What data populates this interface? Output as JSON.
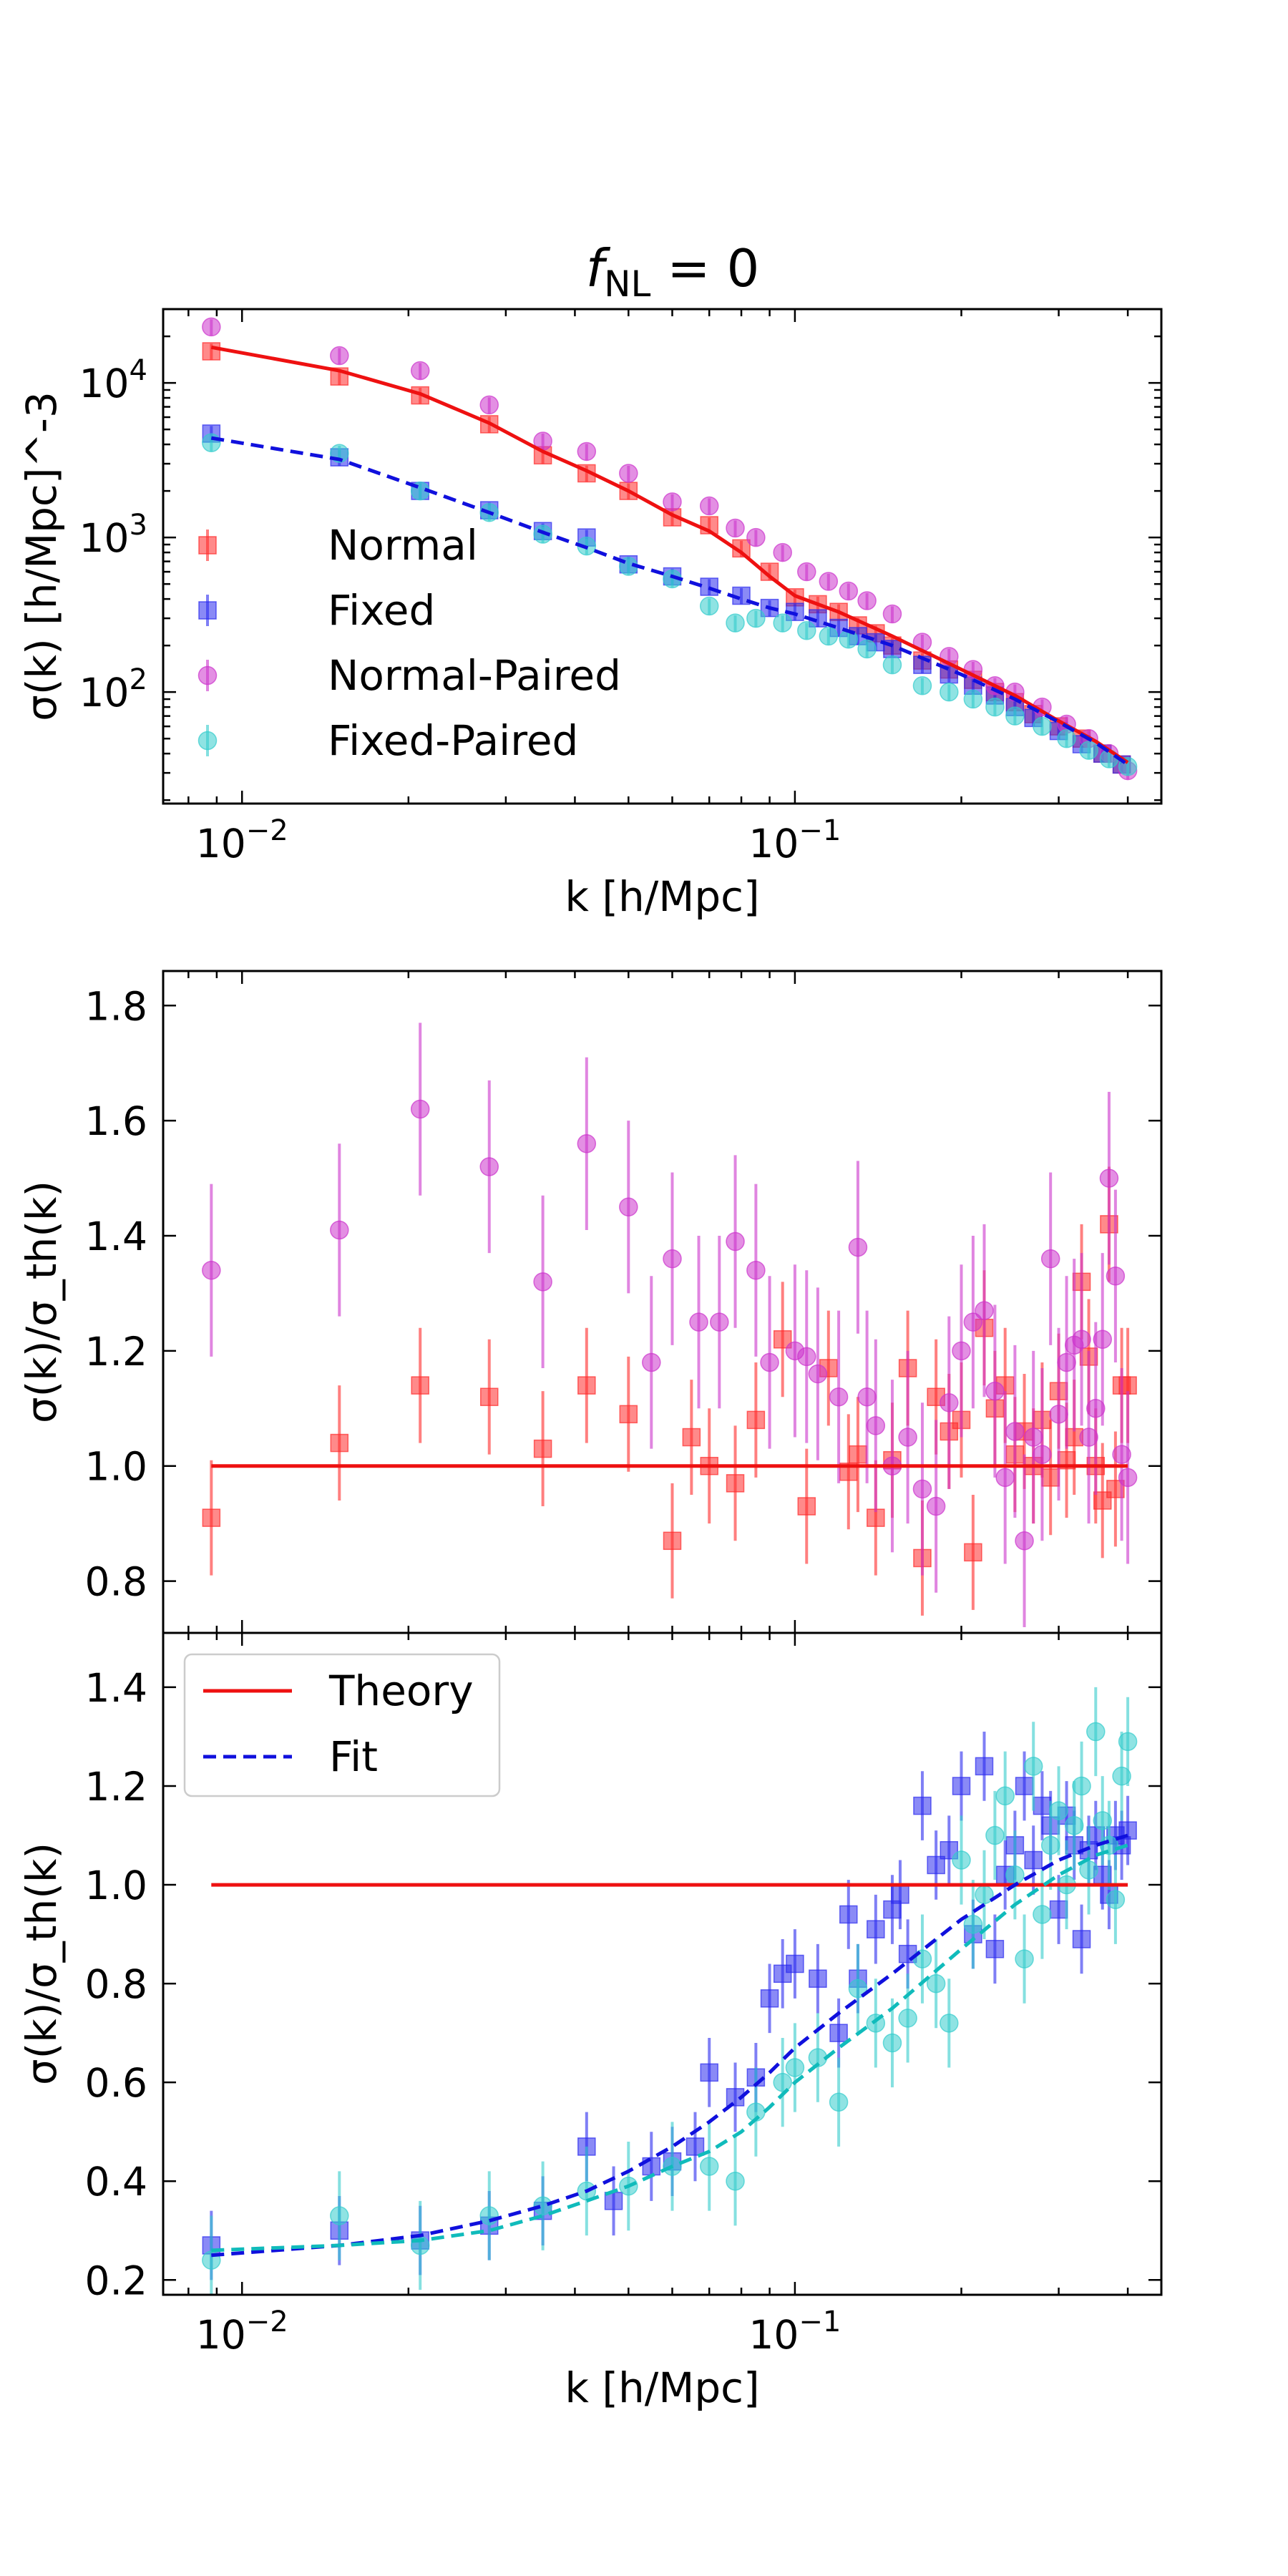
{
  "figure": {
    "title": "f_NL = 0",
    "title_main": "f",
    "title_sub": "NL",
    "title_rest": " = 0"
  },
  "chart_data": [
    {
      "type": "scatter",
      "id": "top",
      "xscale": "log",
      "yscale": "log",
      "xlim": [
        0.0072,
        0.46
      ],
      "ylim": [
        19,
        30000
      ],
      "ylabel": "σ(k)  [h/Mpc]^-3",
      "xlabel": "k [h/Mpc]",
      "xticks": [
        "10^-2",
        "10^-1"
      ],
      "yticks": [
        "10^2",
        "10^3",
        "10^4"
      ],
      "legend": {
        "placement": "lower-left",
        "entries": [
          "Normal",
          "Fixed",
          "Normal-Paired",
          "Fixed-Paired"
        ]
      },
      "lines": [
        {
          "name": "Normal theory",
          "style": "solid",
          "color": "#ee1111",
          "x": [
            0.0088,
            0.015,
            0.021,
            0.028,
            0.035,
            0.042,
            0.05,
            0.06,
            0.07,
            0.08,
            0.09,
            0.1,
            0.12,
            0.15,
            0.2,
            0.25,
            0.3,
            0.35,
            0.4
          ],
          "y": [
            17000,
            12000,
            8500,
            5500,
            3600,
            2700,
            2000,
            1400,
            1100,
            800,
            560,
            420,
            330,
            230,
            140,
            95,
            65,
            48,
            35
          ]
        },
        {
          "name": "Fixed fit",
          "style": "dashed",
          "color": "#1010dd",
          "x": [
            0.0088,
            0.015,
            0.021,
            0.028,
            0.035,
            0.042,
            0.05,
            0.06,
            0.07,
            0.08,
            0.09,
            0.1,
            0.12,
            0.15,
            0.2,
            0.25,
            0.3,
            0.35,
            0.4
          ],
          "y": [
            4400,
            3200,
            2100,
            1450,
            1080,
            860,
            680,
            560,
            470,
            400,
            350,
            320,
            260,
            200,
            130,
            90,
            64,
            47,
            34
          ]
        }
      ],
      "series": [
        {
          "name": "Normal",
          "marker": "square",
          "color": "#ff2a2a",
          "x": [
            0.0088,
            0.015,
            0.021,
            0.028,
            0.035,
            0.042,
            0.05,
            0.06,
            0.07,
            0.08,
            0.09,
            0.1,
            0.11,
            0.12,
            0.13,
            0.14,
            0.15,
            0.17,
            0.19,
            0.21,
            0.23,
            0.25,
            0.27,
            0.3,
            0.33,
            0.36,
            0.39
          ],
          "y": [
            16000,
            11000,
            8300,
            5400,
            3400,
            2600,
            2000,
            1350,
            1200,
            850,
            600,
            410,
            370,
            330,
            270,
            240,
            200,
            160,
            140,
            120,
            100,
            86,
            72,
            60,
            50,
            40,
            34
          ]
        },
        {
          "name": "Fixed",
          "marker": "square",
          "color": "#2a2aee",
          "x": [
            0.0088,
            0.015,
            0.021,
            0.028,
            0.035,
            0.042,
            0.05,
            0.06,
            0.07,
            0.08,
            0.09,
            0.1,
            0.11,
            0.12,
            0.13,
            0.14,
            0.15,
            0.17,
            0.19,
            0.21,
            0.23,
            0.25,
            0.27,
            0.3,
            0.33,
            0.36,
            0.39
          ],
          "y": [
            4700,
            3300,
            2000,
            1500,
            1100,
            1000,
            670,
            560,
            480,
            420,
            350,
            330,
            300,
            260,
            230,
            210,
            190,
            150,
            130,
            110,
            95,
            80,
            68,
            56,
            46,
            40,
            34
          ]
        },
        {
          "name": "Normal-Paired",
          "marker": "circle",
          "color": "#cc33cc",
          "x": [
            0.0088,
            0.015,
            0.021,
            0.028,
            0.035,
            0.042,
            0.05,
            0.06,
            0.07,
            0.078,
            0.085,
            0.095,
            0.105,
            0.115,
            0.125,
            0.135,
            0.15,
            0.17,
            0.19,
            0.21,
            0.23,
            0.25,
            0.28,
            0.31,
            0.34,
            0.37,
            0.4
          ],
          "y": [
            23000,
            15000,
            12000,
            7200,
            4200,
            3600,
            2600,
            1700,
            1600,
            1150,
            1000,
            800,
            600,
            520,
            450,
            390,
            320,
            210,
            170,
            140,
            110,
            100,
            80,
            62,
            50,
            40,
            31
          ]
        },
        {
          "name": "Fixed-Paired",
          "marker": "circle",
          "color": "#33cccc",
          "x": [
            0.0088,
            0.015,
            0.021,
            0.028,
            0.035,
            0.042,
            0.05,
            0.06,
            0.07,
            0.078,
            0.085,
            0.095,
            0.105,
            0.115,
            0.125,
            0.135,
            0.15,
            0.17,
            0.19,
            0.21,
            0.23,
            0.25,
            0.28,
            0.31,
            0.34,
            0.37,
            0.4
          ],
          "y": [
            4100,
            3500,
            2000,
            1450,
            1050,
            880,
            650,
            540,
            360,
            280,
            300,
            280,
            250,
            230,
            220,
            190,
            150,
            110,
            100,
            90,
            80,
            70,
            60,
            50,
            42,
            37,
            33
          ]
        }
      ]
    },
    {
      "type": "scatter",
      "id": "middle",
      "xscale": "log",
      "yscale": "linear",
      "xlim": [
        0.0072,
        0.46
      ],
      "ylim": [
        0.71,
        1.86
      ],
      "ylabel": "σ(k)/σ_th(k)",
      "yticks": [
        "0.8",
        "1.0",
        "1.2",
        "1.4",
        "1.6",
        "1.8"
      ],
      "lines": [
        {
          "name": "Theory",
          "style": "solid",
          "color": "#ee1111",
          "x": [
            0.0088,
            0.4
          ],
          "y": [
            1.0,
            1.0
          ]
        }
      ],
      "series": [
        {
          "name": "Normal",
          "marker": "square",
          "color": "#ff2a2a",
          "err": 0.1,
          "x": [
            0.0088,
            0.015,
            0.021,
            0.028,
            0.035,
            0.042,
            0.05,
            0.06,
            0.065,
            0.07,
            0.078,
            0.085,
            0.095,
            0.105,
            0.115,
            0.125,
            0.13,
            0.14,
            0.15,
            0.16,
            0.17,
            0.18,
            0.19,
            0.2,
            0.21,
            0.22,
            0.23,
            0.24,
            0.25,
            0.26,
            0.27,
            0.28,
            0.29,
            0.3,
            0.31,
            0.32,
            0.33,
            0.34,
            0.35,
            0.36,
            0.37,
            0.38,
            0.39,
            0.4
          ],
          "y": [
            0.91,
            1.04,
            1.14,
            1.12,
            1.03,
            1.14,
            1.09,
            0.87,
            1.05,
            1.0,
            0.97,
            1.08,
            1.22,
            0.93,
            1.17,
            0.99,
            1.02,
            0.91,
            1.01,
            1.17,
            0.84,
            1.12,
            1.06,
            1.08,
            0.85,
            1.24,
            1.1,
            1.14,
            1.02,
            1.06,
            1.0,
            1.08,
            0.98,
            1.13,
            1.01,
            1.05,
            1.32,
            1.19,
            1.0,
            0.94,
            1.42,
            0.96,
            1.14,
            1.14
          ]
        },
        {
          "name": "Normal-Paired",
          "marker": "circle",
          "color": "#cc33cc",
          "err": 0.15,
          "x": [
            0.0088,
            0.015,
            0.021,
            0.028,
            0.035,
            0.042,
            0.05,
            0.055,
            0.06,
            0.067,
            0.073,
            0.078,
            0.085,
            0.09,
            0.1,
            0.105,
            0.11,
            0.12,
            0.13,
            0.135,
            0.14,
            0.15,
            0.16,
            0.17,
            0.18,
            0.19,
            0.2,
            0.21,
            0.22,
            0.23,
            0.24,
            0.25,
            0.26,
            0.27,
            0.28,
            0.29,
            0.3,
            0.31,
            0.32,
            0.33,
            0.34,
            0.35,
            0.36,
            0.37,
            0.38,
            0.39,
            0.4
          ],
          "y": [
            1.34,
            1.41,
            1.62,
            1.52,
            1.32,
            1.56,
            1.45,
            1.18,
            1.36,
            1.25,
            1.25,
            1.39,
            1.34,
            1.18,
            1.2,
            1.19,
            1.16,
            1.12,
            1.38,
            1.12,
            1.07,
            1.0,
            1.05,
            0.96,
            0.93,
            1.11,
            1.2,
            1.25,
            1.27,
            1.13,
            0.98,
            1.06,
            0.87,
            1.05,
            1.02,
            1.36,
            1.09,
            1.18,
            1.21,
            1.22,
            1.05,
            1.1,
            1.22,
            1.5,
            1.33,
            1.02,
            0.98
          ]
        }
      ]
    },
    {
      "type": "scatter",
      "id": "bottom",
      "xscale": "log",
      "yscale": "linear",
      "xlim": [
        0.0072,
        0.46
      ],
      "ylim": [
        0.17,
        1.51
      ],
      "ylabel": "σ(k)/σ_th(k)",
      "xlabel": "k [h/Mpc]",
      "xticks": [
        "10^-2",
        "10^-1"
      ],
      "yticks": [
        "0.2",
        "0.4",
        "0.6",
        "0.8",
        "1.0",
        "1.2",
        "1.4"
      ],
      "legend": {
        "placement": "top-left",
        "entries": [
          "Theory",
          "Fit"
        ]
      },
      "lines": [
        {
          "name": "Theory",
          "style": "solid",
          "color": "#ee1111",
          "x": [
            0.0088,
            0.4
          ],
          "y": [
            1.0,
            1.0
          ]
        },
        {
          "name": "Fit",
          "style": "dashed",
          "color": "#1010dd",
          "x": [
            0.0088,
            0.015,
            0.021,
            0.028,
            0.035,
            0.042,
            0.05,
            0.06,
            0.07,
            0.08,
            0.09,
            0.1,
            0.12,
            0.15,
            0.2,
            0.25,
            0.3,
            0.35,
            0.4
          ],
          "y": [
            0.25,
            0.27,
            0.29,
            0.32,
            0.35,
            0.38,
            0.42,
            0.47,
            0.52,
            0.57,
            0.62,
            0.67,
            0.74,
            0.82,
            0.93,
            1.0,
            1.05,
            1.08,
            1.1
          ]
        },
        {
          "name": "Fit paired",
          "style": "dashed",
          "color": "#10bbbb",
          "x": [
            0.0088,
            0.015,
            0.021,
            0.028,
            0.035,
            0.042,
            0.05,
            0.06,
            0.07,
            0.08,
            0.09,
            0.1,
            0.12,
            0.15,
            0.2,
            0.25,
            0.3,
            0.35,
            0.4
          ],
          "y": [
            0.26,
            0.27,
            0.28,
            0.3,
            0.33,
            0.36,
            0.39,
            0.43,
            0.46,
            0.5,
            0.55,
            0.6,
            0.67,
            0.75,
            0.87,
            0.96,
            1.02,
            1.06,
            1.08
          ]
        }
      ],
      "series": [
        {
          "name": "Fixed",
          "marker": "square",
          "color": "#2a2aee",
          "err": 0.07,
          "x": [
            0.0088,
            0.015,
            0.021,
            0.028,
            0.035,
            0.042,
            0.047,
            0.055,
            0.06,
            0.066,
            0.07,
            0.078,
            0.085,
            0.09,
            0.095,
            0.1,
            0.11,
            0.12,
            0.125,
            0.13,
            0.14,
            0.15,
            0.155,
            0.16,
            0.17,
            0.18,
            0.19,
            0.2,
            0.21,
            0.22,
            0.23,
            0.24,
            0.25,
            0.26,
            0.27,
            0.28,
            0.29,
            0.3,
            0.31,
            0.32,
            0.33,
            0.34,
            0.35,
            0.36,
            0.37,
            0.38,
            0.39,
            0.4
          ],
          "y": [
            0.27,
            0.3,
            0.28,
            0.31,
            0.34,
            0.47,
            0.36,
            0.43,
            0.44,
            0.47,
            0.62,
            0.57,
            0.61,
            0.77,
            0.82,
            0.84,
            0.81,
            0.7,
            0.94,
            0.81,
            0.91,
            0.95,
            0.98,
            0.86,
            1.16,
            1.04,
            1.07,
            1.2,
            0.9,
            1.24,
            0.87,
            1.02,
            1.08,
            1.2,
            1.05,
            1.16,
            1.12,
            0.95,
            1.14,
            1.08,
            0.89,
            1.07,
            1.1,
            1.02,
            0.98,
            1.1,
            1.08,
            1.11
          ]
        },
        {
          "name": "Fixed-Paired",
          "marker": "circle",
          "color": "#33cccc",
          "err": 0.09,
          "x": [
            0.0088,
            0.015,
            0.021,
            0.028,
            0.035,
            0.042,
            0.05,
            0.06,
            0.07,
            0.078,
            0.085,
            0.095,
            0.1,
            0.11,
            0.12,
            0.13,
            0.14,
            0.15,
            0.16,
            0.17,
            0.18,
            0.19,
            0.2,
            0.21,
            0.22,
            0.23,
            0.24,
            0.25,
            0.26,
            0.27,
            0.28,
            0.29,
            0.3,
            0.31,
            0.32,
            0.33,
            0.34,
            0.35,
            0.36,
            0.37,
            0.38,
            0.39,
            0.4
          ],
          "y": [
            0.24,
            0.33,
            0.27,
            0.33,
            0.35,
            0.38,
            0.39,
            0.43,
            0.43,
            0.4,
            0.54,
            0.6,
            0.63,
            0.65,
            0.56,
            0.79,
            0.72,
            0.68,
            0.73,
            0.85,
            0.8,
            0.72,
            1.05,
            0.92,
            0.98,
            1.1,
            1.18,
            1.02,
            0.85,
            1.24,
            0.94,
            1.08,
            1.15,
            1.0,
            1.12,
            1.2,
            1.03,
            1.31,
            1.13,
            1.08,
            0.97,
            1.22,
            1.29
          ]
        }
      ]
    }
  ]
}
